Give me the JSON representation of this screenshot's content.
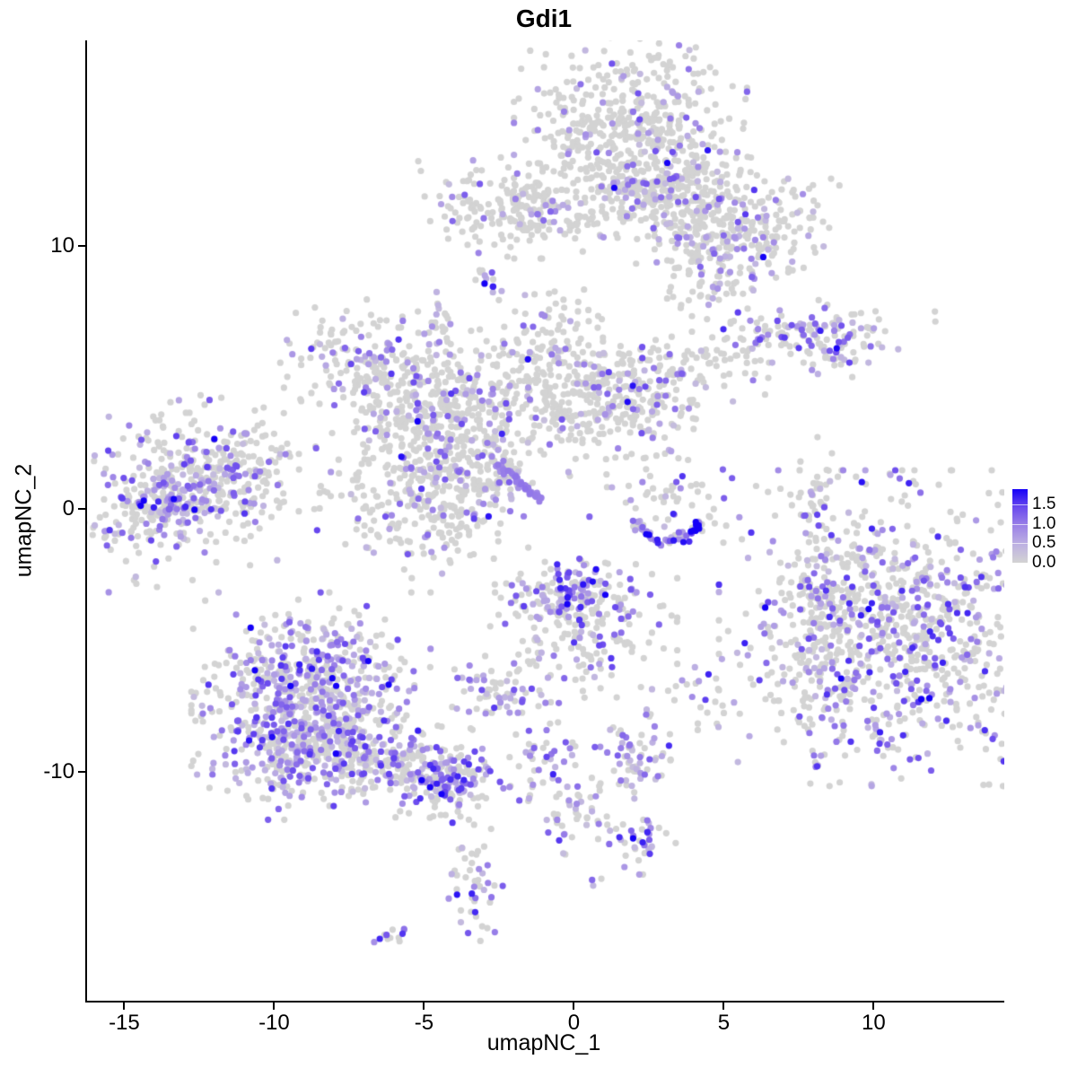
{
  "chart_data": {
    "type": "scatter",
    "title": "Gdi1",
    "xlabel": "umapNC_1",
    "ylabel": "umapNC_2",
    "xlim": [
      -16.3,
      14.3
    ],
    "ylim": [
      -18.7,
      17.8
    ],
    "x_ticks": [
      -15,
      -10,
      -5,
      0,
      5,
      10
    ],
    "y_ticks": [
      -10,
      0,
      10
    ],
    "grid": false,
    "background": "#FFFFFF",
    "axis_color": "#000000",
    "point_radius_px": 3.6,
    "gray_color": "#D3D3D3",
    "palette_stops": [
      [
        0,
        "#D3D3D3"
      ],
      [
        0.25,
        "#BDB0E2"
      ],
      [
        0.5,
        "#9C83E7"
      ],
      [
        0.75,
        "#6B4BEE"
      ],
      [
        1,
        "#1500F7"
      ]
    ],
    "legend": {
      "position": "right",
      "tick_labels": [
        "1.5",
        "1.0",
        "0.5",
        "0.0"
      ],
      "tick_values": [
        1.5,
        1.0,
        0.5,
        0.0
      ],
      "scale_max": 1.9,
      "low_color": "#D3D3D3",
      "high_color": "#0000FF"
    },
    "seed": 1337,
    "clusters": [
      {
        "name": "top-blob",
        "cx": 1.83,
        "cy": 14.16,
        "rx": 1.62,
        "ry": 1.6,
        "n": 520,
        "frac": 0.16,
        "lvl": 0.5
      },
      {
        "name": "top-blob-neck",
        "cx": 2.72,
        "cy": 12.1,
        "rx": 0.9,
        "ry": 0.8,
        "n": 150,
        "frac": 0.18,
        "lvl": 0.5
      },
      {
        "name": "top-right-wing",
        "cx": 5.06,
        "cy": 11.43,
        "rx": 1.45,
        "ry": 0.85,
        "rot": -12,
        "n": 230,
        "frac": 0.16,
        "lvl": 0.55
      },
      {
        "name": "top-right-hook",
        "cx": 4.97,
        "cy": 9.62,
        "rx": 1.2,
        "ry": 0.8,
        "rot": 20,
        "n": 150,
        "frac": 0.2,
        "lvl": 0.55
      },
      {
        "name": "top-right-tip",
        "cx": 4.5,
        "cy": 8.5,
        "rx": 0.35,
        "ry": 0.28,
        "n": 14,
        "frac": 0.25,
        "lvl": 0.5
      },
      {
        "name": "top-left-cluster",
        "cx": -2.13,
        "cy": 11.43,
        "rx": 1.3,
        "ry": 0.8,
        "n": 190,
        "frac": 0.12,
        "lvl": 0.5
      },
      {
        "name": "top-left-tail",
        "cx": 0.03,
        "cy": 10.9,
        "rx": 0.95,
        "ry": 0.3,
        "n": 35,
        "frac": 0.12,
        "lvl": 0.45
      },
      {
        "name": "tiny-knot",
        "cx": -2.9,
        "cy": 8.7,
        "rx": 0.28,
        "ry": 0.26,
        "rot": 40,
        "n": 14,
        "frac": 0.5,
        "lvl": 0.55
      },
      {
        "name": "tiny-upper-left",
        "cx": -4.52,
        "cy": 7.1,
        "rx": 0.28,
        "ry": 0.5,
        "n": 22,
        "frac": 0.45,
        "lvl": 0.5
      },
      {
        "name": "right-arrow",
        "cx": 7.96,
        "cy": 6.75,
        "rx": 1.7,
        "ry": 0.5,
        "n": 140,
        "frac": 0.35,
        "lvl": 0.6
      },
      {
        "name": "right-arrow-tail",
        "cx": 8.65,
        "cy": 5.8,
        "rx": 0.45,
        "ry": 0.4,
        "rot": -40,
        "n": 22,
        "frac": 0.4,
        "lvl": 0.55
      },
      {
        "name": "mid-left-blob",
        "cx": -6.56,
        "cy": 5.36,
        "rx": 1.35,
        "ry": 1.0,
        "rot": -15,
        "n": 230,
        "frac": 0.22,
        "lvl": 0.55
      },
      {
        "name": "mid-left-arm",
        "cx": -4.76,
        "cy": 4.16,
        "rx": 1.1,
        "ry": 0.7,
        "rot": -25,
        "n": 70,
        "frac": 0.15,
        "lvl": 0.5
      },
      {
        "name": "center-fan",
        "cx": -1.02,
        "cy": 5.0,
        "rx": 1.35,
        "ry": 1.3,
        "n": 270,
        "frac": 0.13,
        "lvl": 0.5
      },
      {
        "name": "center-fan-right",
        "cx": 1.83,
        "cy": 4.27,
        "rx": 1.35,
        "ry": 1.0,
        "rot": 15,
        "n": 240,
        "frac": 0.18,
        "lvl": 0.55
      },
      {
        "name": "sparse-bridge",
        "cx": 4.52,
        "cy": 5.36,
        "rx": 1.6,
        "ry": 0.55,
        "n": 45,
        "frac": 0.1,
        "lvl": 0.45
      },
      {
        "name": "top-sparse-column",
        "cx": -0.8,
        "cy": 7.4,
        "rx": 0.45,
        "ry": 1.0,
        "n": 16,
        "frac": 0.12,
        "lvl": 0.45
      },
      {
        "name": "loop-upper",
        "cx": -4.61,
        "cy": 2.97,
        "rx": 1.45,
        "ry": 1.05,
        "n": 190,
        "frac": 0.16,
        "lvl": 0.5
      },
      {
        "name": "loop-right",
        "cx": -3.11,
        "cy": 1.6,
        "rx": 0.9,
        "ry": 1.05,
        "n": 130,
        "frac": 0.18,
        "lvl": 0.5
      },
      {
        "name": "loop-lower",
        "cx": -5.06,
        "cy": 0.24,
        "rx": 1.45,
        "ry": 1.2,
        "n": 260,
        "frac": 0.18,
        "lvl": 0.5
      },
      {
        "name": "purple-streak",
        "shape": "line",
        "x1": -2.78,
        "y1": 1.84,
        "x2": -1.11,
        "y2": 0.3,
        "jit": 0.07,
        "n": 44,
        "frac": 1,
        "uniform": 0.5
      },
      {
        "name": "smile-scatter",
        "cx": 3.02,
        "cy": 0.65,
        "rx": 1.25,
        "ry": 0.85,
        "n": 55,
        "frac": 0.35,
        "lvl": 0.6
      },
      {
        "name": "smile-arc",
        "shape": "arc",
        "cx": 3.08,
        "cy": -0.2,
        "rx": 1.1,
        "ry": 1.0,
        "a1": 195,
        "a2": 345,
        "jit": 0.1,
        "n": 55,
        "frac": 0.75,
        "lvl": 0.75
      },
      {
        "name": "right-mini-column",
        "cx": 8.05,
        "cy": 0.2,
        "rx": 0.35,
        "ry": 1.05,
        "n": 40,
        "frac": 0.22,
        "lvl": 0.55
      },
      {
        "name": "right-big-blob",
        "cx": 10.66,
        "cy": -4.54,
        "rx": 2.45,
        "ry": 2.5,
        "n": 850,
        "frac": 0.32,
        "lvl": 0.6
      },
      {
        "name": "right-blob-arm",
        "cx": 8.17,
        "cy": -5.73,
        "rx": 0.85,
        "ry": 1.7,
        "n": 130,
        "frac": 0.3,
        "lvl": 0.55
      },
      {
        "name": "right-blob-top-arm",
        "cx": 7.96,
        "cy": -2.66,
        "rx": 0.5,
        "ry": 0.8,
        "n": 40,
        "frac": 0.3,
        "lvl": 0.5
      },
      {
        "name": "center-low-top",
        "cx": -0.33,
        "cy": -3.1,
        "rx": 1.0,
        "ry": 0.55,
        "n": 120,
        "frac": 0.55,
        "lvl": 0.65
      },
      {
        "name": "center-low-body",
        "cx": 0.27,
        "cy": -4.54,
        "rx": 1.3,
        "ry": 1.1,
        "n": 170,
        "frac": 0.3,
        "lvl": 0.55
      },
      {
        "name": "center-low-trail",
        "shape": "line",
        "x1": -1.17,
        "y1": -4.81,
        "x2": -1.53,
        "y2": -6.18,
        "jit": 0.12,
        "n": 10,
        "frac": 0.3,
        "lvl": 0.5
      },
      {
        "name": "small-mid-cluster",
        "cx": -2.42,
        "cy": -7.0,
        "rx": 0.85,
        "ry": 0.6,
        "n": 70,
        "frac": 0.45,
        "lvl": 0.55
      },
      {
        "name": "left-wedge",
        "cx": -12.84,
        "cy": 0.75,
        "rx": 1.85,
        "ry": 1.4,
        "rot": 15,
        "n": 380,
        "frac": 0.3,
        "lvl": 0.55
      },
      {
        "name": "left-wedge-band",
        "cx": -13.59,
        "cy": 0.24,
        "rx": 1.0,
        "ry": 0.55,
        "rot": 15,
        "n": 120,
        "frac": 0.55,
        "lvl": 0.55
      },
      {
        "name": "left-wedge-ext",
        "cx": -10.99,
        "cy": 1.6,
        "rx": 0.8,
        "ry": 0.65,
        "n": 60,
        "frac": 0.2,
        "lvl": 0.5
      },
      {
        "name": "bottom-left-upper",
        "cx": -8.8,
        "cy": -6.66,
        "rx": 1.65,
        "ry": 1.45,
        "n": 430,
        "frac": 0.45,
        "lvl": 0.55
      },
      {
        "name": "bottom-left-lower",
        "cx": -9.1,
        "cy": -8.7,
        "rx": 1.55,
        "ry": 1.3,
        "n": 430,
        "frac": 0.45,
        "lvl": 0.55
      },
      {
        "name": "bottom-left-tail",
        "cx": -5.81,
        "cy": -9.73,
        "rx": 1.85,
        "ry": 0.72,
        "rot": -14,
        "n": 260,
        "frac": 0.45,
        "lvl": 0.6
      },
      {
        "name": "bottom-left-knot",
        "cx": -4.31,
        "cy": -10.34,
        "rx": 0.55,
        "ry": 0.45,
        "n": 90,
        "frac": 0.6,
        "lvl": 0.6
      },
      {
        "name": "mid-bottom-bits",
        "cx": 3.77,
        "cy": -7.3,
        "rx": 1.0,
        "ry": 0.72,
        "n": 26,
        "frac": 0.5,
        "lvl": 0.6
      },
      {
        "name": "small-s",
        "cx": -1.02,
        "cy": -9.32,
        "rx": 0.42,
        "ry": 0.5,
        "n": 28,
        "frac": 0.45,
        "lvl": 0.6
      },
      {
        "name": "small-s-trail",
        "cx": -0.21,
        "cy": -11.4,
        "rx": 0.4,
        "ry": 1.05,
        "rot": -12,
        "n": 40,
        "frac": 0.4,
        "lvl": 0.55
      },
      {
        "name": "small-s-side",
        "cx": 0.63,
        "cy": -11.9,
        "rx": 0.3,
        "ry": 0.14,
        "n": 8,
        "frac": 0.1,
        "lvl": 0.45
      },
      {
        "name": "lavender-cluster",
        "cx": 2.13,
        "cy": -9.49,
        "rx": 0.62,
        "ry": 0.7,
        "n": 65,
        "frac": 0.5,
        "lvl": 0.45
      },
      {
        "name": "lavender-lower",
        "cx": 2.07,
        "cy": -12.7,
        "rx": 0.55,
        "ry": 0.5,
        "n": 38,
        "frac": 0.45,
        "lvl": 0.6
      },
      {
        "name": "bottom-bat",
        "cx": -3.41,
        "cy": -14.6,
        "rx": 0.42,
        "ry": 0.9,
        "rot": 10,
        "n": 45,
        "frac": 0.45,
        "lvl": 0.6
      },
      {
        "name": "bottom-tiny",
        "cx": -6.02,
        "cy": -16.25,
        "rx": 0.33,
        "ry": 0.18,
        "rot": 25,
        "n": 12,
        "frac": 0.4,
        "lvl": 0.55
      },
      {
        "name": "pair-1",
        "cx": -4.1,
        "cy": -11.6,
        "rx": 0.25,
        "ry": 0.08,
        "n": 3,
        "frac": 0.4,
        "lvl": 0.55
      },
      {
        "name": "pair-2",
        "cx": 0.57,
        "cy": -14.1,
        "rx": 0.12,
        "ry": 0.12,
        "n": 3,
        "frac": 0.85,
        "lvl": 0.55
      },
      {
        "name": "single-dot-1",
        "cx": -2.81,
        "cy": 4.35,
        "rx": 0.03,
        "ry": 0.03,
        "n": 1,
        "frac": 1,
        "lvl": 0.75
      },
      {
        "name": "single-dot-2",
        "cx": -1.17,
        "cy": -5.7,
        "rx": 0.03,
        "ry": 0.03,
        "n": 1,
        "frac": 1,
        "lvl": 0.55
      },
      {
        "name": "single-dot-3",
        "cx": -0.81,
        "cy": -7.37,
        "rx": 0.03,
        "ry": 0.03,
        "n": 1,
        "frac": 0,
        "lvl": 0
      }
    ]
  }
}
